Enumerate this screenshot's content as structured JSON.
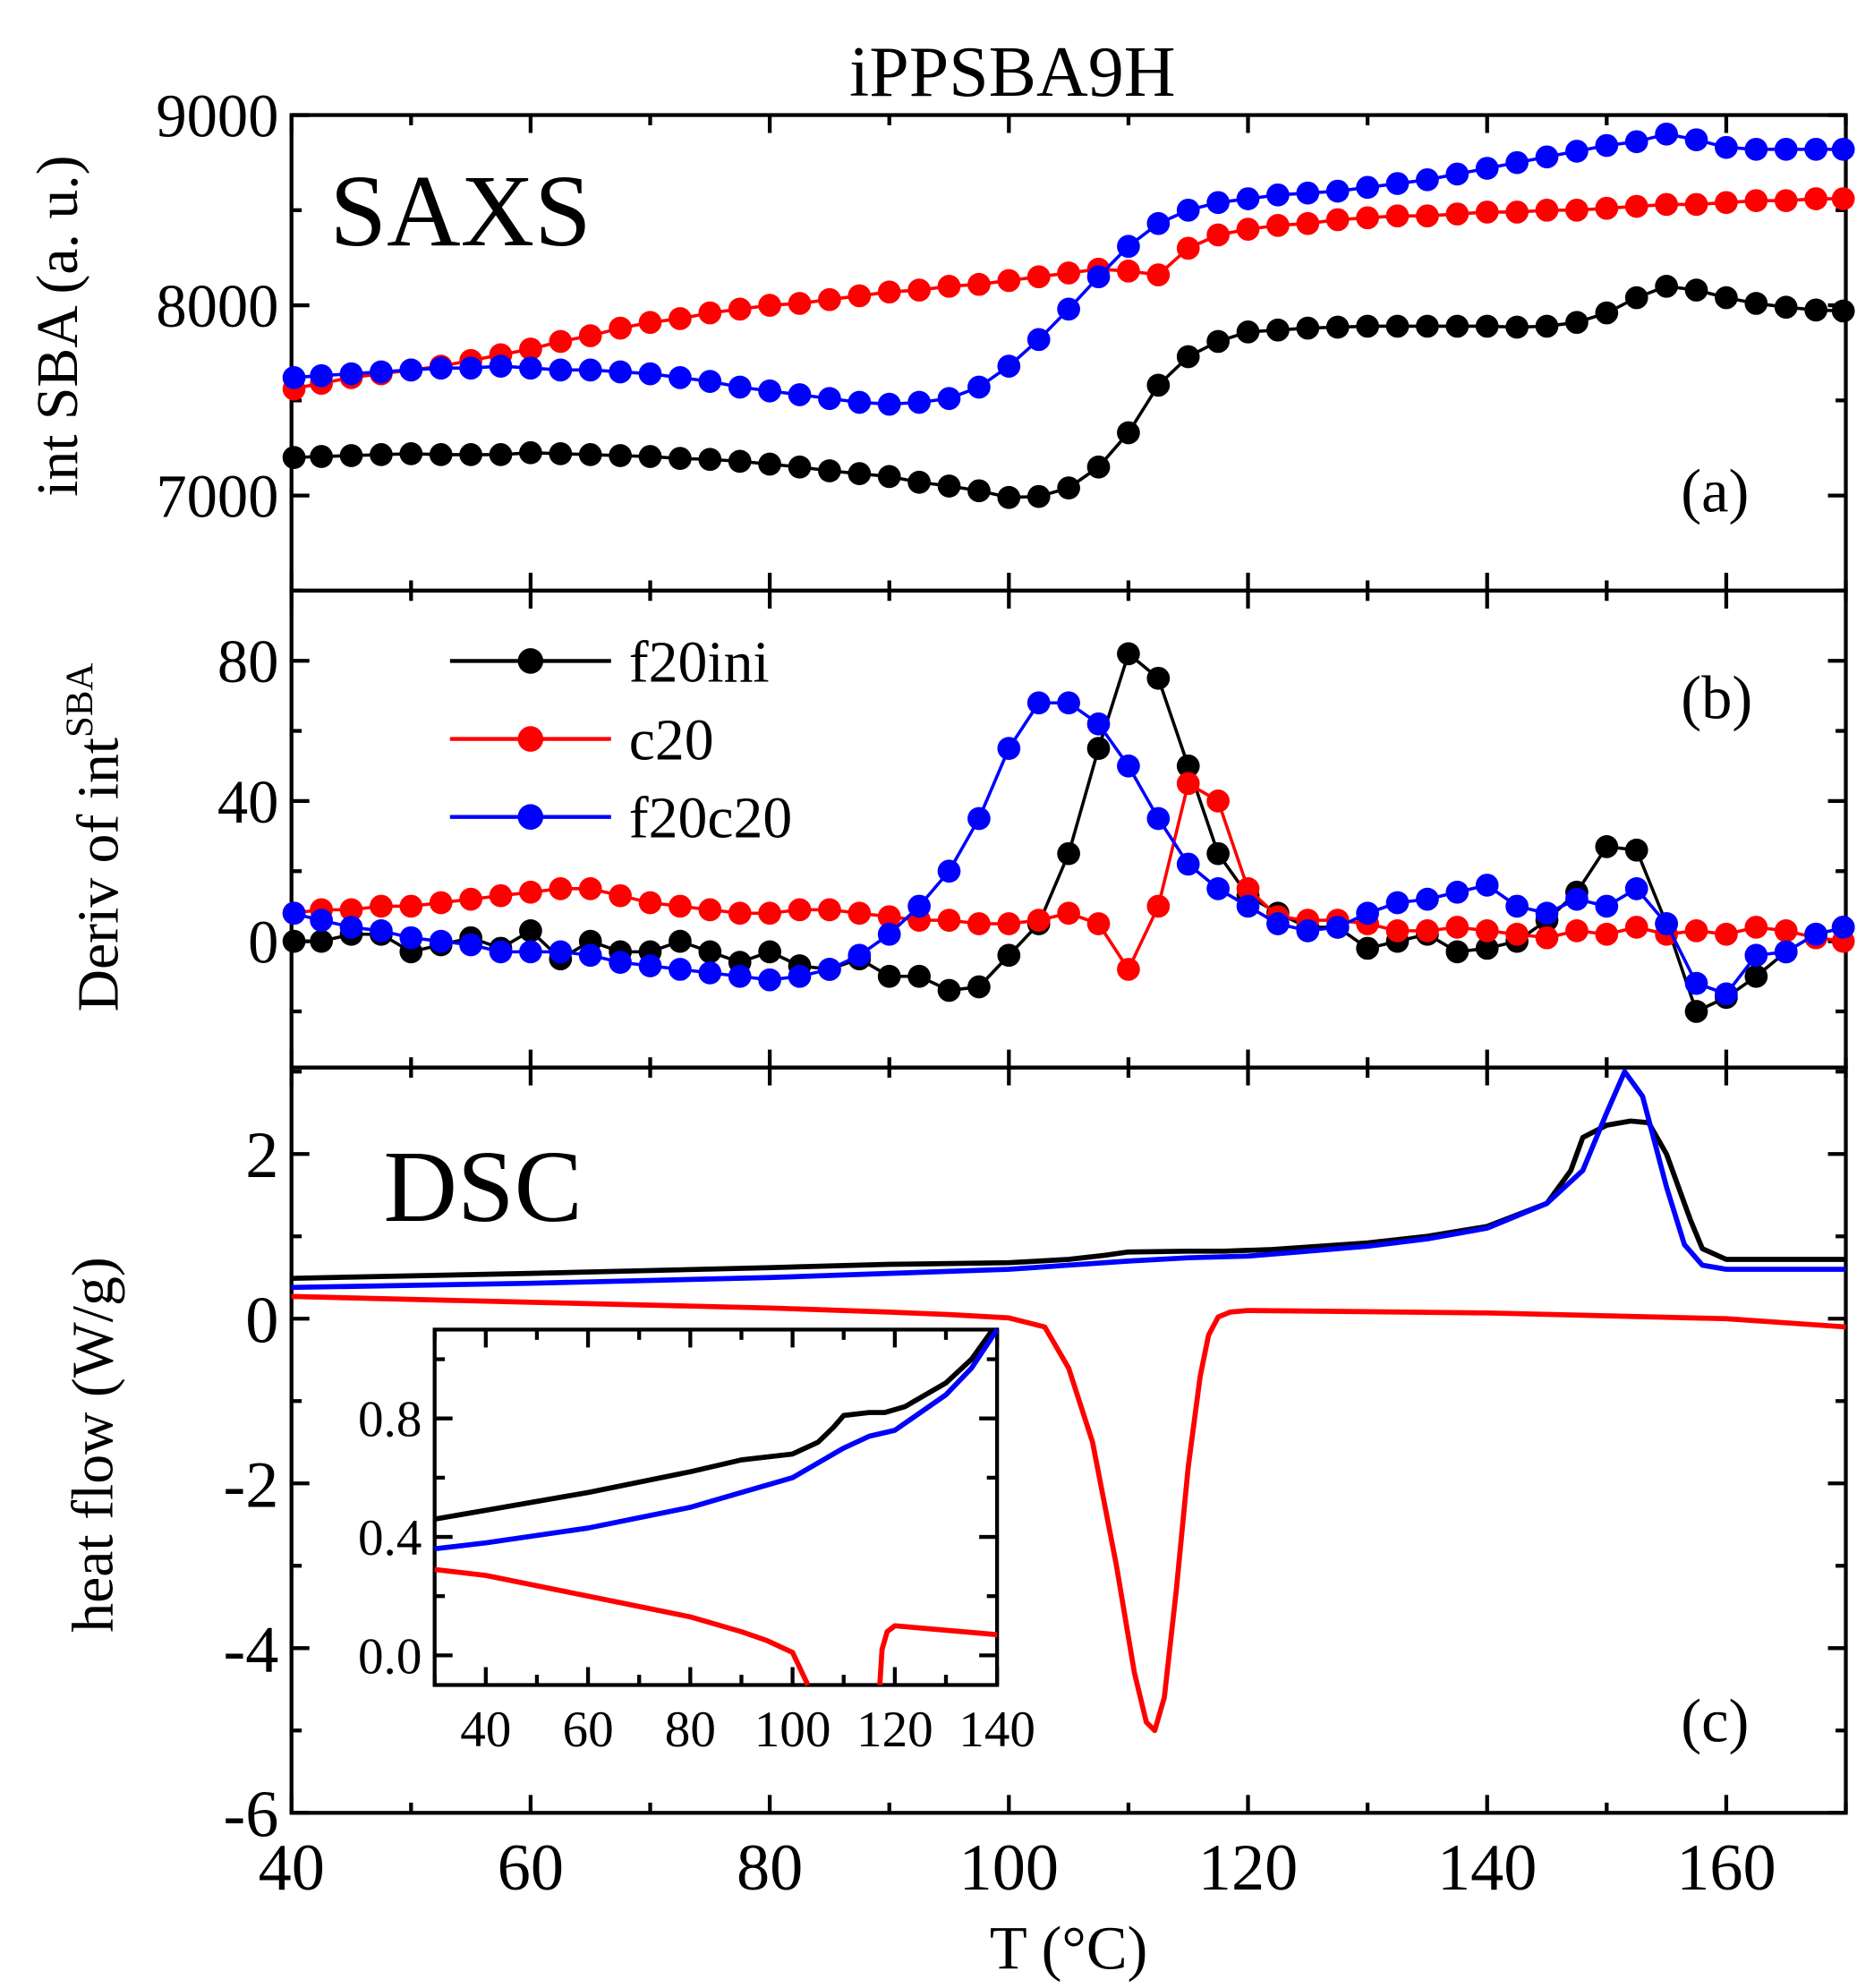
{
  "chart_data": [
    {
      "panel": "a",
      "type": "scatter",
      "title": "iPPSBA9H",
      "annotation": "SAXS",
      "panel_label": "(a)",
      "ylabel": "int SBA (a. u.)",
      "xlim": [
        40,
        170
      ],
      "ylim": [
        6500,
        9000
      ],
      "yticks": [
        7000,
        8000,
        9000
      ],
      "x_start": 40,
      "x_step": 2.5,
      "series": [
        {
          "name": "f20ini",
          "color": "#000000",
          "values": [
            7200,
            7205,
            7210,
            7215,
            7220,
            7215,
            7215,
            7215,
            7225,
            7220,
            7215,
            7210,
            7205,
            7195,
            7190,
            7180,
            7165,
            7150,
            7130,
            7115,
            7100,
            7070,
            7050,
            7025,
            6990,
            6995,
            7040,
            7150,
            7330,
            7580,
            7730,
            7810,
            7860,
            7870,
            7880,
            7885,
            7890,
            7890,
            7890,
            7890,
            7890,
            7885,
            7890,
            7910,
            7960,
            8040,
            8100,
            8080,
            8040,
            8010,
            7990,
            7975,
            7970
          ]
        },
        {
          "name": "c20",
          "color": "#ff0000",
          "values": [
            7560,
            7590,
            7620,
            7640,
            7660,
            7680,
            7710,
            7740,
            7770,
            7810,
            7840,
            7880,
            7910,
            7930,
            7960,
            7980,
            8000,
            8010,
            8030,
            8050,
            8070,
            8080,
            8100,
            8110,
            8130,
            8150,
            8170,
            8190,
            8180,
            8160,
            8300,
            8370,
            8400,
            8420,
            8430,
            8450,
            8460,
            8470,
            8470,
            8480,
            8490,
            8490,
            8500,
            8500,
            8510,
            8520,
            8530,
            8530,
            8540,
            8550,
            8550,
            8560,
            8560
          ]
        },
        {
          "name": "f20c20",
          "color": "#0000ff",
          "values": [
            7620,
            7630,
            7640,
            7650,
            7660,
            7670,
            7670,
            7680,
            7670,
            7660,
            7660,
            7650,
            7640,
            7620,
            7600,
            7570,
            7550,
            7530,
            7510,
            7490,
            7480,
            7490,
            7510,
            7570,
            7680,
            7820,
            7980,
            8150,
            8310,
            8430,
            8500,
            8540,
            8560,
            8580,
            8590,
            8600,
            8620,
            8640,
            8660,
            8690,
            8720,
            8750,
            8780,
            8810,
            8840,
            8860,
            8900,
            8870,
            8830,
            8820,
            8820,
            8820,
            8820
          ]
        }
      ]
    },
    {
      "panel": "b",
      "type": "line",
      "panel_label": "(b)",
      "ylabel": "Deriv of int",
      "ylabel_sup": "SBA",
      "legend": "top-left",
      "xlim": [
        40,
        170
      ],
      "ylim": [
        -36,
        100
      ],
      "yticks": [
        0,
        40,
        80
      ],
      "x_start": 40,
      "x_step": 2.5,
      "series": [
        {
          "name": "f20ini",
          "color": "#000000",
          "values": [
            0,
            0,
            2,
            2,
            -3,
            -1,
            1,
            -2,
            3,
            -5,
            0,
            -3,
            -3,
            0,
            -3,
            -6,
            -3,
            -7,
            -8,
            -5,
            -10,
            -10,
            -14,
            -13,
            -4,
            5,
            25,
            55,
            82,
            75,
            50,
            25,
            13,
            8,
            4,
            4,
            -2,
            0,
            2,
            -3,
            -2,
            0,
            6,
            14,
            27,
            26,
            5,
            -20,
            -16,
            -10,
            -3,
            2,
            4
          ]
        },
        {
          "name": "c20",
          "color": "#ff0000",
          "values": [
            8,
            9,
            9,
            10,
            10,
            11,
            12,
            13,
            14,
            15,
            15,
            13,
            11,
            10,
            9,
            8,
            8,
            9,
            9,
            8,
            7,
            6,
            6,
            5,
            5,
            6,
            8,
            5,
            -8,
            10,
            45,
            40,
            15,
            7,
            6,
            6,
            5,
            3,
            3,
            4,
            3,
            2,
            1,
            3,
            2,
            4,
            2,
            3,
            2,
            4,
            3,
            1,
            0
          ]
        },
        {
          "name": "f20c20",
          "color": "#0000ff",
          "values": [
            8,
            6,
            4,
            3,
            1,
            0,
            -1,
            -3,
            -3,
            -3,
            -4,
            -6,
            -7,
            -8,
            -9,
            -10,
            -11,
            -10,
            -8,
            -4,
            2,
            10,
            20,
            35,
            55,
            68,
            68,
            62,
            50,
            35,
            22,
            15,
            10,
            5,
            3,
            4,
            8,
            11,
            12,
            14,
            16,
            10,
            8,
            12,
            10,
            15,
            5,
            -12,
            -15,
            -4,
            -3,
            2,
            4
          ]
        }
      ]
    },
    {
      "panel": "c",
      "type": "line",
      "annotation": "DSC",
      "panel_label": "(c)",
      "xlabel": "T (°C)",
      "ylabel": "heat flow (W/g)",
      "xlim": [
        40,
        170
      ],
      "ylim": [
        -6,
        3.05
      ],
      "xticks": [
        40,
        60,
        80,
        100,
        120,
        140,
        160
      ],
      "yticks": [
        -6,
        -4,
        -2,
        0,
        2
      ],
      "series": [
        {
          "name": "f20ini",
          "color": "#000000",
          "x": [
            30,
            40,
            60,
            80,
            90,
            100,
            105,
            108,
            110,
            115,
            118,
            122,
            130,
            135,
            140,
            145,
            147,
            148,
            150,
            152,
            153.5,
            155,
            157,
            158,
            160,
            170
          ],
          "y": [
            0.46,
            0.49,
            0.55,
            0.62,
            0.66,
            0.68,
            0.72,
            0.77,
            0.81,
            0.82,
            0.82,
            0.84,
            0.92,
            1.0,
            1.12,
            1.4,
            1.8,
            2.2,
            2.35,
            2.4,
            2.38,
            2.0,
            1.2,
            0.85,
            0.72,
            0.72
          ]
        },
        {
          "name": "f20c20",
          "color": "#0000ff",
          "x": [
            30,
            40,
            60,
            80,
            90,
            100,
            105,
            110,
            115,
            120,
            130,
            135,
            140,
            145,
            148,
            150,
            151.5,
            153,
            155,
            156.5,
            158,
            160,
            170
          ],
          "y": [
            0.36,
            0.38,
            0.43,
            0.5,
            0.55,
            0.6,
            0.65,
            0.7,
            0.74,
            0.76,
            0.88,
            0.97,
            1.1,
            1.4,
            1.8,
            2.5,
            3.0,
            2.7,
            1.6,
            0.9,
            0.65,
            0.6,
            0.6
          ]
        },
        {
          "name": "c20",
          "color": "#ff0000",
          "x": [
            30,
            40,
            60,
            80,
            90,
            95,
            100,
            103,
            105,
            107,
            109,
            110.5,
            111.5,
            112.2,
            113,
            114,
            115,
            116,
            116.7,
            117.5,
            118.5,
            120,
            140,
            160,
            170
          ],
          "y": [
            0.29,
            0.27,
            0.2,
            0.13,
            0.08,
            0.05,
            0.01,
            -0.1,
            -0.6,
            -1.5,
            -3.0,
            -4.3,
            -4.9,
            -5.0,
            -4.6,
            -3.3,
            -1.8,
            -0.7,
            -0.2,
            0.02,
            0.08,
            0.1,
            0.07,
            0.0,
            -0.1
          ]
        }
      ]
    },
    {
      "panel": "inset",
      "type": "line",
      "xlim": [
        30,
        140
      ],
      "ylim": [
        -0.1,
        1.1
      ],
      "xticks": [
        40,
        60,
        80,
        100,
        120,
        140
      ],
      "yticks": [
        "0.0",
        "0.4",
        "0.8"
      ],
      "series_source": "same as panel c"
    }
  ]
}
